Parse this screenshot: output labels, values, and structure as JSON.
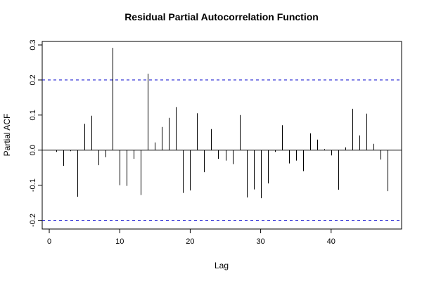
{
  "chart_data": {
    "type": "bar",
    "title": "Residual Partial Autocorrelation Function",
    "xlabel": "Lag",
    "ylabel": "Partial ACF",
    "xlim": [
      -1,
      50
    ],
    "ylim": [
      -0.225,
      0.31
    ],
    "xticks": [
      0,
      10,
      20,
      30,
      40
    ],
    "yticks": [
      -0.2,
      -0.1,
      0.0,
      0.1,
      0.2,
      0.3
    ],
    "ytick_labels": [
      "-0.2",
      "-0.1",
      "0.0",
      "0.1",
      "0.2",
      "0.3"
    ],
    "xtick_labels": [
      "0",
      "10",
      "20",
      "30",
      "40"
    ],
    "confidence_bound": 0.2,
    "confidence_color": "#0000cc",
    "bar_color": "#000000",
    "grid": false,
    "lags": [
      1,
      2,
      3,
      4,
      5,
      6,
      7,
      8,
      9,
      10,
      11,
      12,
      13,
      14,
      15,
      16,
      17,
      18,
      19,
      20,
      21,
      22,
      23,
      24,
      25,
      26,
      27,
      28,
      29,
      30,
      31,
      32,
      33,
      34,
      35,
      36,
      37,
      38,
      39,
      40,
      41,
      42,
      43,
      44,
      45,
      46,
      47,
      48
    ],
    "values": [
      -0.005,
      -0.045,
      -0.003,
      -0.133,
      0.075,
      0.098,
      -0.043,
      -0.02,
      0.292,
      -0.1,
      -0.102,
      -0.025,
      -0.128,
      0.218,
      0.022,
      0.066,
      0.092,
      0.123,
      -0.122,
      -0.115,
      0.105,
      -0.063,
      0.06,
      -0.025,
      -0.03,
      -0.04,
      0.1,
      -0.135,
      -0.112,
      -0.137,
      -0.095,
      -0.005,
      0.071,
      -0.038,
      -0.03,
      -0.06,
      0.048,
      0.03,
      0.003,
      -0.015,
      -0.113,
      0.008,
      0.118,
      0.042,
      0.104,
      0.018,
      -0.027,
      -0.117
    ]
  }
}
